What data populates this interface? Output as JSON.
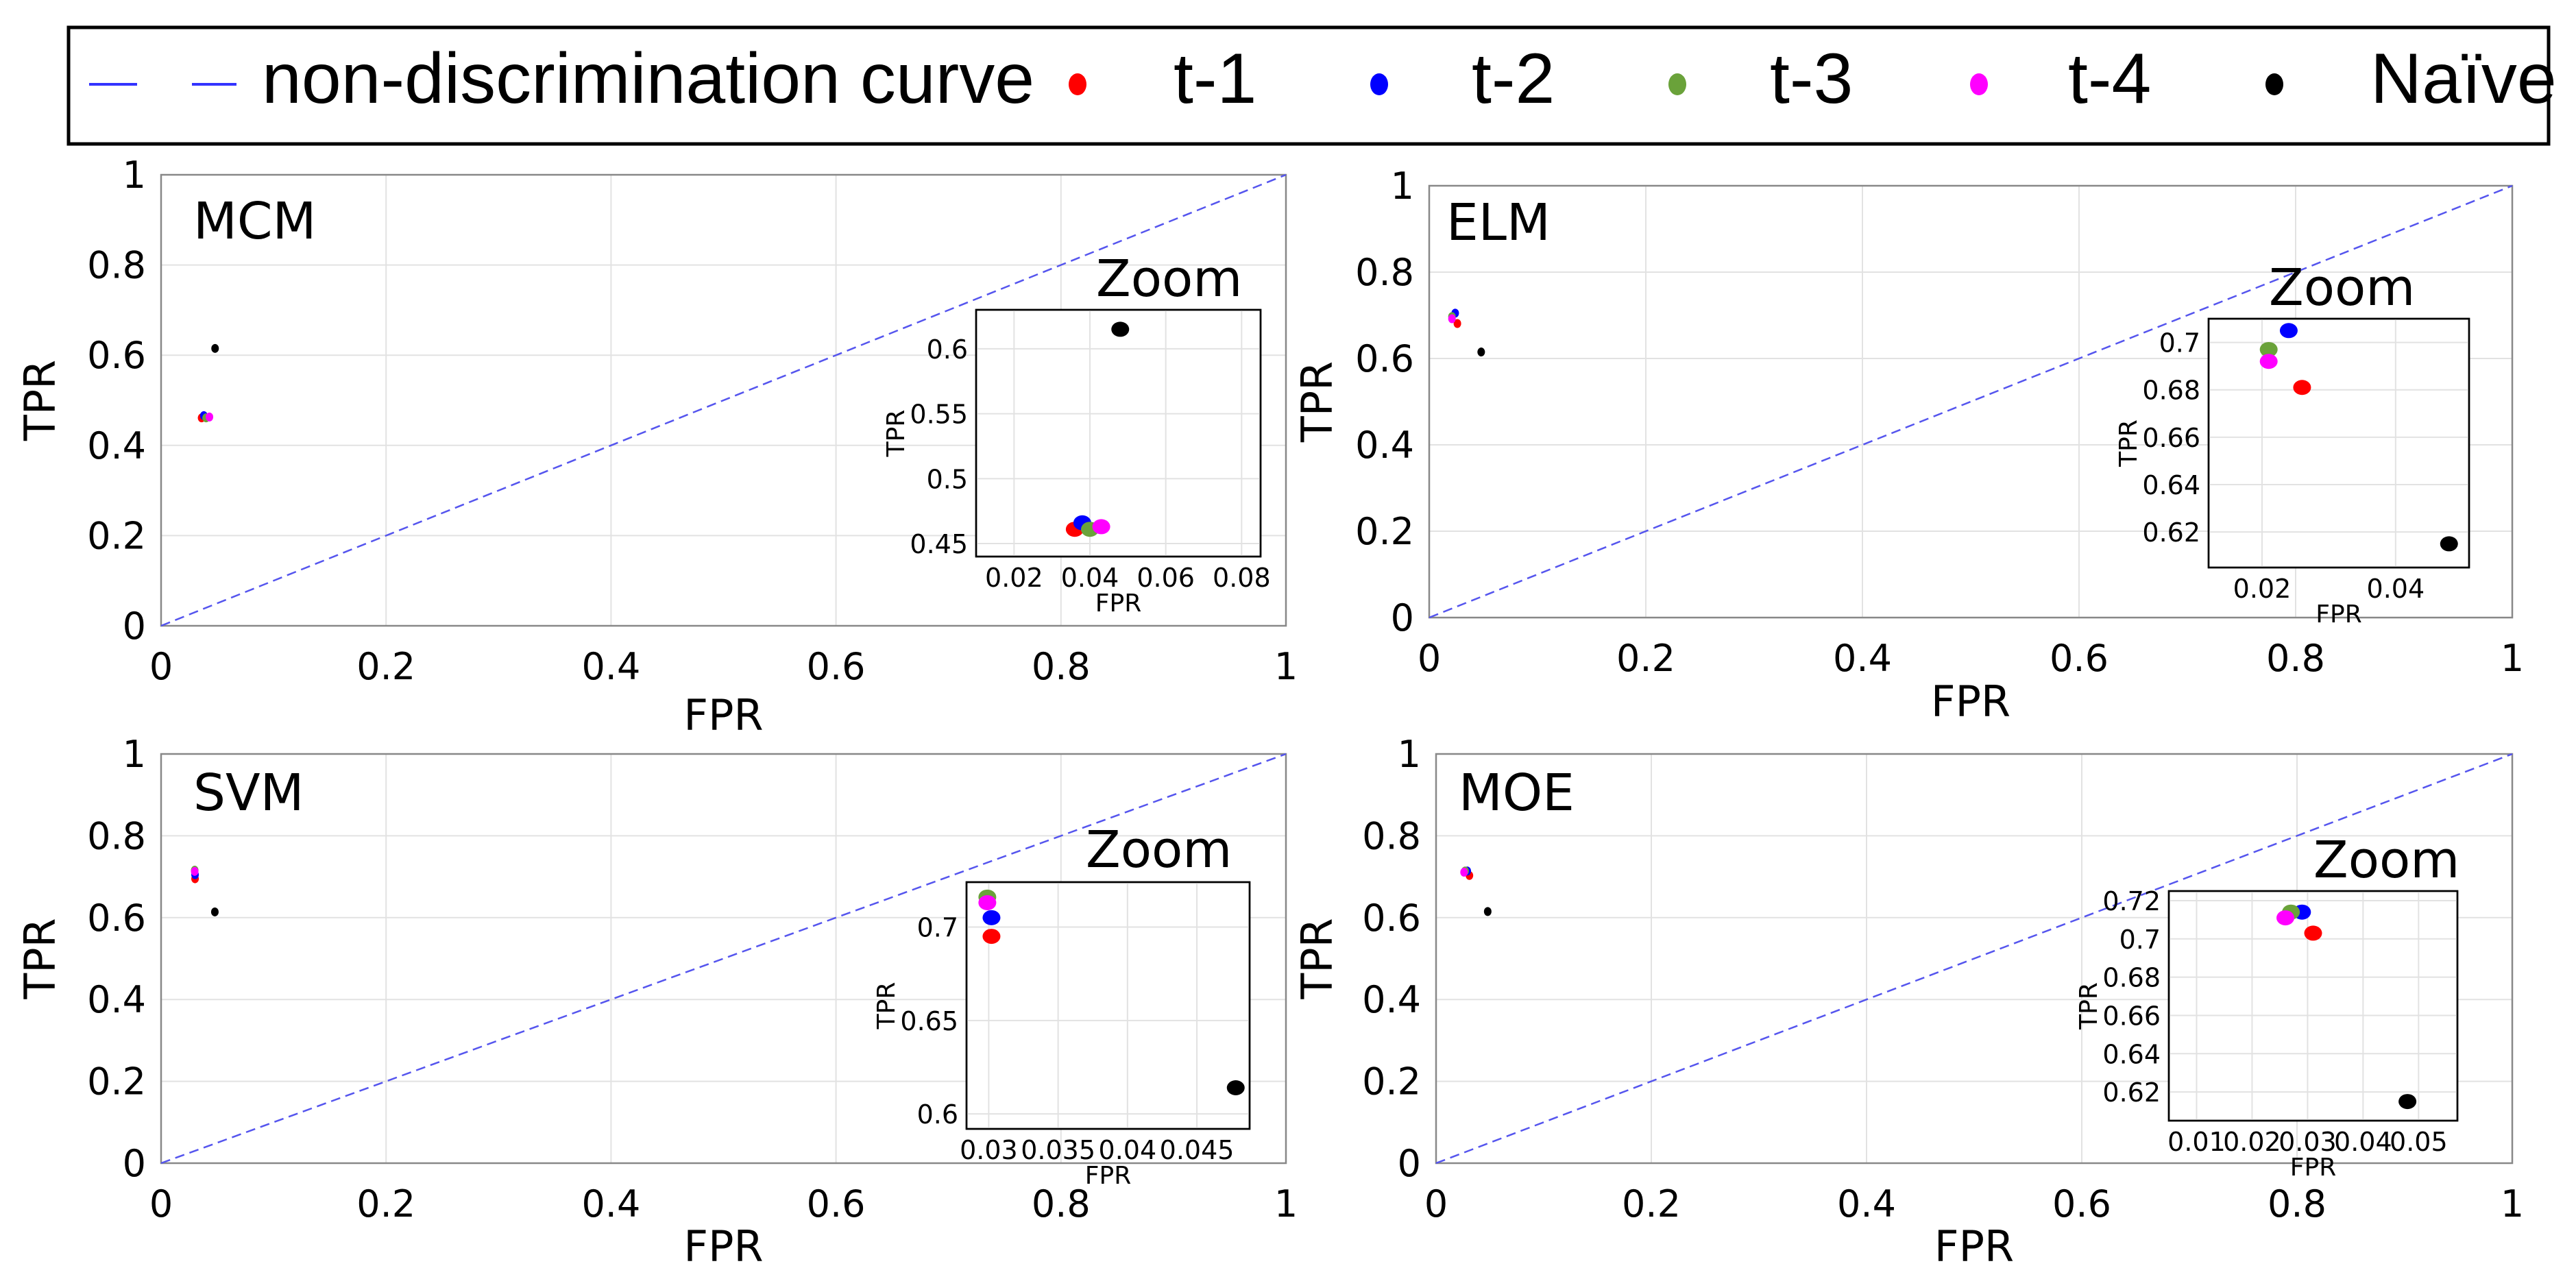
{
  "legend": {
    "items": [
      {
        "label": "non-discrimination curve",
        "color": "#3333ff",
        "kind": "line"
      },
      {
        "label": "t-1",
        "color": "#ff0000",
        "kind": "marker"
      },
      {
        "label": "t-2",
        "color": "#0000ff",
        "kind": "marker"
      },
      {
        "label": "t-3",
        "color": "#6aa23a",
        "kind": "marker"
      },
      {
        "label": "t-4",
        "color": "#ff00ff",
        "kind": "marker"
      },
      {
        "label": "Naïve",
        "color": "#000000",
        "kind": "marker"
      }
    ]
  },
  "colors": {
    "diagonal": "#5555ee",
    "grid": "#e2e2e2",
    "axis": "#888888"
  },
  "chart_data": [
    {
      "type": "scatter",
      "title": "MCM",
      "xlabel": "FPR",
      "ylabel": "TPR",
      "xlim": [
        0,
        1
      ],
      "ylim": [
        0,
        1
      ],
      "xticks": [
        "0",
        "0.2",
        "0.4",
        "0.6",
        "0.8",
        "1"
      ],
      "yticks": [
        "0",
        "0.2",
        "0.4",
        "0.6",
        "0.8",
        "1"
      ],
      "series": [
        {
          "name": "t-1",
          "x": 0.036,
          "y": 0.461
        },
        {
          "name": "t-2",
          "x": 0.038,
          "y": 0.466
        },
        {
          "name": "t-3",
          "x": 0.04,
          "y": 0.461
        },
        {
          "name": "t-4",
          "x": 0.043,
          "y": 0.463
        },
        {
          "name": "Naïve",
          "x": 0.048,
          "y": 0.615
        }
      ],
      "inset": {
        "title": "Zoom",
        "xlabel": "FPR",
        "ylabel": "TPR",
        "xlim": [
          0.01,
          0.085
        ],
        "ylim": [
          0.44,
          0.63
        ],
        "xticks": [
          0.02,
          0.04,
          0.06,
          0.08
        ],
        "xtick_labels": [
          "0.02",
          "0.04",
          "0.06",
          "0.08"
        ],
        "yticks": [
          0.45,
          0.5,
          0.55,
          0.6
        ],
        "ytick_labels": [
          "0.45",
          "0.5",
          "0.55",
          "0.6"
        ]
      }
    },
    {
      "type": "scatter",
      "title": "ELM",
      "xlabel": "FPR",
      "ylabel": "TPR",
      "xlim": [
        0,
        1
      ],
      "ylim": [
        0,
        1
      ],
      "xticks": [
        "0",
        "0.2",
        "0.4",
        "0.6",
        "0.8",
        "1"
      ],
      "yticks": [
        "0",
        "0.2",
        "0.4",
        "0.6",
        "0.8",
        "1"
      ],
      "series": [
        {
          "name": "t-1",
          "x": 0.026,
          "y": 0.681
        },
        {
          "name": "t-2",
          "x": 0.024,
          "y": 0.705
        },
        {
          "name": "t-3",
          "x": 0.021,
          "y": 0.697
        },
        {
          "name": "t-4",
          "x": 0.021,
          "y": 0.692
        },
        {
          "name": "Naïve",
          "x": 0.048,
          "y": 0.615
        }
      ],
      "inset": {
        "title": "Zoom",
        "xlabel": "FPR",
        "ylabel": "TPR",
        "xlim": [
          0.012,
          0.051
        ],
        "ylim": [
          0.605,
          0.71
        ],
        "xticks": [
          0.02,
          0.04
        ],
        "xtick_labels": [
          "0.02",
          "0.04"
        ],
        "yticks": [
          0.62,
          0.64,
          0.66,
          0.68,
          0.7
        ],
        "ytick_labels": [
          "0.62",
          "0.64",
          "0.66",
          "0.68",
          "0.7"
        ]
      }
    },
    {
      "type": "scatter",
      "title": "SVM",
      "xlabel": "FPR",
      "ylabel": "TPR",
      "xlim": [
        0,
        1
      ],
      "ylim": [
        0,
        1
      ],
      "xticks": [
        "0",
        "0.2",
        "0.4",
        "0.6",
        "0.8",
        "1"
      ],
      "yticks": [
        "0",
        "0.2",
        "0.4",
        "0.6",
        "0.8",
        "1"
      ],
      "series": [
        {
          "name": "t-1",
          "x": 0.0302,
          "y": 0.695
        },
        {
          "name": "t-2",
          "x": 0.0302,
          "y": 0.705
        },
        {
          "name": "t-3",
          "x": 0.0299,
          "y": 0.716
        },
        {
          "name": "t-4",
          "x": 0.0299,
          "y": 0.713
        },
        {
          "name": "Naïve",
          "x": 0.0478,
          "y": 0.614
        }
      ],
      "inset": {
        "title": "Zoom",
        "xlabel": "FPR",
        "ylabel": "TPR",
        "xlim": [
          0.0284,
          0.0488
        ],
        "ylim": [
          0.592,
          0.724
        ],
        "xticks": [
          0.03,
          0.035,
          0.04,
          0.045
        ],
        "xtick_labels": [
          "0.03",
          "0.035",
          "0.04",
          "0.045"
        ],
        "yticks": [
          0.6,
          0.65,
          0.7
        ],
        "ytick_labels": [
          "0.6",
          "0.65",
          "0.7"
        ]
      }
    },
    {
      "type": "scatter",
      "title": "MOE",
      "xlabel": "FPR",
      "ylabel": "TPR",
      "xlim": [
        0,
        1
      ],
      "ylim": [
        0,
        1
      ],
      "xticks": [
        "0",
        "0.2",
        "0.4",
        "0.6",
        "0.8",
        "1"
      ],
      "yticks": [
        "0",
        "0.2",
        "0.4",
        "0.6",
        "0.8",
        "1"
      ],
      "series": [
        {
          "name": "t-1",
          "x": 0.031,
          "y": 0.703
        },
        {
          "name": "t-2",
          "x": 0.029,
          "y": 0.714
        },
        {
          "name": "t-3",
          "x": 0.027,
          "y": 0.714
        },
        {
          "name": "t-4",
          "x": 0.026,
          "y": 0.711
        },
        {
          "name": "Naïve",
          "x": 0.048,
          "y": 0.615
        }
      ],
      "inset": {
        "title": "Zoom",
        "xlabel": "FPR",
        "ylabel": "TPR",
        "xlim": [
          0.005,
          0.057
        ],
        "ylim": [
          0.605,
          0.725
        ],
        "xticks": [
          0.01,
          0.02,
          0.03,
          0.04,
          0.05
        ],
        "xtick_labels": [
          "0.01",
          "0.02",
          "0.03",
          "0.04",
          "0.05"
        ],
        "yticks": [
          0.62,
          0.64,
          0.66,
          0.68,
          0.7,
          0.72
        ],
        "ytick_labels": [
          "0.62",
          "0.64",
          "0.66",
          "0.68",
          "0.7",
          "0.72"
        ]
      }
    }
  ]
}
